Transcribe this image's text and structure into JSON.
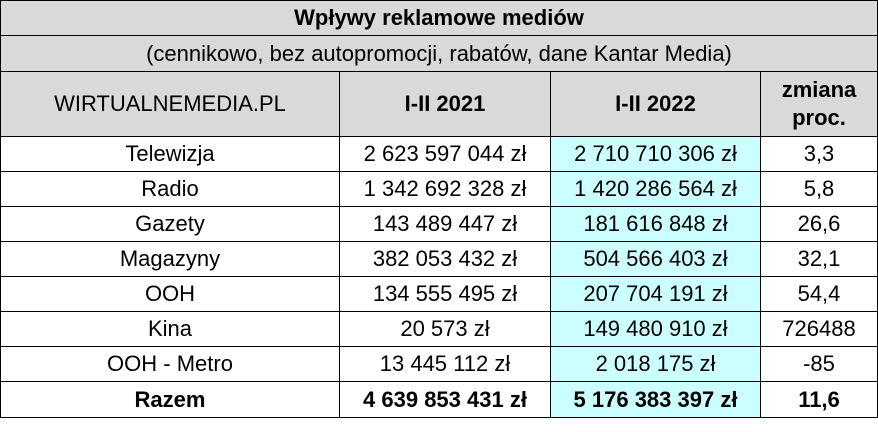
{
  "title": "Wpływy reklamowe mediów",
  "subtitle": "(cennikowo, bez autopromocji, rabatów, dane Kantar Media)",
  "header": {
    "source": "WIRTUALNEMEDIA.PL",
    "col_2021": "I-II 2021",
    "col_2022": "I-II 2022",
    "col_change_line1": "zmiana",
    "col_change_line2": "proc."
  },
  "rows": [
    {
      "name": "Telewizja",
      "v2021": "2 623 597 044 zł",
      "v2022": "2 710 710 306 zł",
      "change": "3,3"
    },
    {
      "name": "Radio",
      "v2021": "1 342 692 328 zł",
      "v2022": "1 420 286 564 zł",
      "change": "5,8"
    },
    {
      "name": "Gazety",
      "v2021": "143 489 447 zł",
      "v2022": "181 616 848 zł",
      "change": "26,6"
    },
    {
      "name": "Magazyny",
      "v2021": "382 053 432 zł",
      "v2022": "504 566 403 zł",
      "change": "32,1"
    },
    {
      "name": "OOH",
      "v2021": "134 555 495 zł",
      "v2022": "207 704 191 zł",
      "change": "54,4"
    },
    {
      "name": "Kina",
      "v2021": "20 573 zł",
      "v2022": "149 480 910 zł",
      "change": "726488"
    },
    {
      "name": "OOH - Metro",
      "v2021": "13 445 112 zł",
      "v2022": "2 018 175 zł",
      "change": "-85"
    }
  ],
  "total": {
    "name": "Razem",
    "v2021": "4 639 853 431 zł",
    "v2022": "5 176 383 397 zł",
    "change": "11,6"
  },
  "colors": {
    "header_bg": "#d9d9d9",
    "highlight_bg": "#ccffff",
    "border": "#000000"
  }
}
